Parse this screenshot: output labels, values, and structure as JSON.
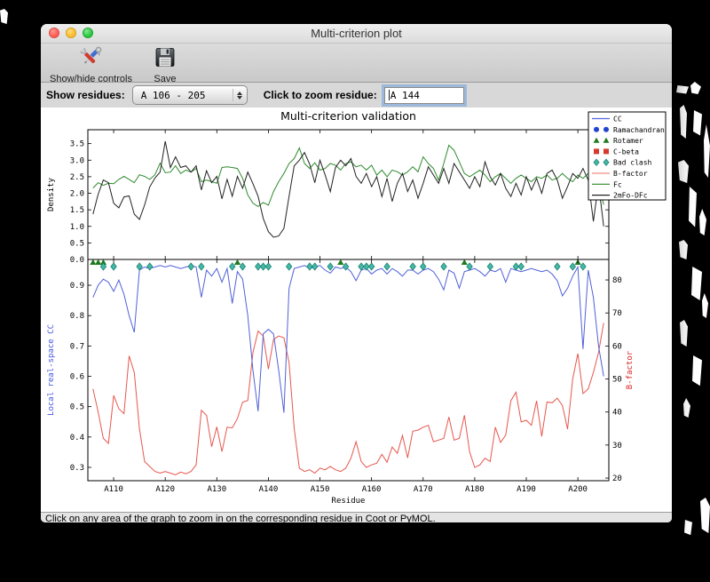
{
  "window": {
    "title": "Multi-criterion plot"
  },
  "toolbar": {
    "buttons": [
      {
        "label": "Show/hide controls",
        "icon": "tools-icon"
      },
      {
        "label": "Save",
        "icon": "floppy-disk-icon"
      }
    ]
  },
  "controls": {
    "show_residues_label": "Show residues:",
    "residue_range_value": "A 106 - 205",
    "zoom_residue_label": "Click to zoom residue:",
    "zoom_residue_value": "A  144"
  },
  "status": {
    "message": "Click on any area of the graph to zoom in on the corresponding residue in Coot or PyMOL."
  },
  "chart_data": {
    "type": "line",
    "title": "Multi-criterion validation",
    "xlabel": "Residue",
    "x_start": 106,
    "xlim": [
      105,
      206
    ],
    "x_tick_values": [
      110,
      120,
      130,
      140,
      150,
      160,
      170,
      180,
      190,
      200
    ],
    "x_tick_labels": [
      "A110",
      "A120",
      "A130",
      "A140",
      "A150",
      "A160",
      "A170",
      "A180",
      "A190",
      "A200"
    ],
    "top_panel": {
      "ylabel": "Density",
      "ylim": [
        0,
        3.92
      ],
      "ytick_values": [
        0.0,
        0.5,
        1.0,
        1.5,
        2.0,
        2.5,
        3.0,
        3.5
      ],
      "ytick_labels": [
        "0.0",
        "0.5",
        "1.0",
        "1.5",
        "2.0",
        "2.5",
        "3.0",
        "3.5"
      ],
      "series": [
        {
          "name": "Fc",
          "color": "#2e8b2e",
          "values": [
            2.16,
            2.32,
            2.24,
            2.3,
            2.29,
            2.42,
            2.51,
            2.42,
            2.32,
            2.56,
            2.51,
            2.42,
            2.56,
            2.91,
            2.62,
            2.64,
            2.83,
            2.6,
            2.7,
            2.64,
            2.75,
            2.35,
            2.4,
            2.35,
            2.3,
            2.78,
            2.8,
            2.78,
            2.75,
            2.45,
            1.95,
            1.7,
            1.6,
            1.72,
            1.64,
            2.05,
            2.35,
            2.6,
            2.9,
            3.05,
            3.37,
            2.9,
            2.75,
            2.92,
            2.7,
            2.75,
            2.9,
            2.85,
            2.7,
            2.9,
            2.95,
            2.8,
            2.85,
            2.7,
            2.85,
            2.55,
            2.7,
            2.5,
            2.7,
            2.65,
            2.55,
            2.65,
            2.8,
            2.65,
            3.1,
            2.9,
            2.75,
            2.4,
            2.9,
            3.45,
            3.3,
            2.95,
            2.6,
            2.5,
            2.6,
            2.7,
            2.55,
            2.35,
            2.5,
            2.6,
            2.45,
            2.3,
            2.45,
            2.55,
            2.45,
            2.35,
            2.5,
            2.45,
            2.55,
            2.4,
            2.45,
            2.6,
            2.45,
            2.35,
            2.55,
            2.45,
            2.6,
            2.45,
            2.35,
            1.65
          ]
        },
        {
          "name": "2mFo-DFc",
          "color": "#222222",
          "values": [
            1.37,
            1.97,
            2.4,
            2.32,
            1.7,
            1.56,
            1.89,
            1.92,
            1.37,
            1.21,
            1.64,
            2.19,
            2.46,
            2.64,
            3.57,
            2.78,
            3.1,
            2.78,
            2.83,
            2.64,
            2.83,
            2.1,
            2.68,
            2.32,
            2.51,
            1.83,
            2.42,
            1.91,
            2.51,
            2.15,
            2.64,
            2.29,
            1.91,
            1.24,
            0.84,
            0.67,
            0.71,
            0.94,
            1.91,
            2.83,
            3.0,
            3.23,
            2.88,
            2.32,
            3.0,
            2.56,
            2.05,
            2.78,
            3.0,
            2.83,
            3.05,
            2.51,
            2.3,
            2.6,
            2.2,
            2.5,
            1.9,
            2.45,
            1.75,
            2.3,
            2.6,
            2.05,
            2.4,
            1.85,
            2.3,
            2.8,
            2.55,
            2.3,
            2.75,
            2.3,
            2.9,
            2.65,
            2.4,
            2.15,
            2.5,
            2.2,
            2.95,
            2.5,
            2.25,
            2.6,
            2.15,
            1.9,
            2.3,
            1.95,
            2.5,
            2.1,
            2.45,
            2.0,
            2.6,
            2.7,
            2.4,
            1.85,
            2.2,
            2.6,
            2.45,
            2.75,
            2.4,
            1.15,
            2.3,
            1.0
          ]
        }
      ]
    },
    "bottom_panel": {
      "ylabel_left": "Local real-space CC",
      "ylabel_left_color": "#4555dd",
      "ylim_left": [
        0.256,
        0.985
      ],
      "ytick_left_values": [
        0.3,
        0.4,
        0.5,
        0.6,
        0.7,
        0.8,
        0.9
      ],
      "ytick_left_labels": [
        "0.3",
        "0.4",
        "0.5",
        "0.6",
        "0.7",
        "0.8",
        "0.9"
      ],
      "ylabel_right": "B-factor",
      "ylabel_right_color": "#dd2222",
      "ylim_right": [
        19.2,
        86.2
      ],
      "ytick_right_values": [
        20,
        30,
        40,
        50,
        60,
        70,
        80
      ],
      "ytick_right_labels": [
        "20",
        "30",
        "40",
        "50",
        "60",
        "70",
        "80"
      ],
      "series": [
        {
          "name": "CC",
          "axis": "left",
          "color": "#5061d8",
          "values": [
            0.86,
            0.9,
            0.92,
            0.91,
            0.88,
            0.917,
            0.87,
            0.8,
            0.745,
            0.95,
            0.96,
            0.955,
            0.96,
            0.965,
            0.96,
            0.965,
            0.96,
            0.955,
            0.96,
            0.965,
            0.96,
            0.86,
            0.95,
            0.93,
            0.955,
            0.91,
            0.955,
            0.84,
            0.945,
            0.92,
            0.8,
            0.62,
            0.485,
            0.74,
            0.755,
            0.74,
            0.62,
            0.48,
            0.89,
            0.955,
            0.96,
            0.965,
            0.955,
            0.96,
            0.965,
            0.95,
            0.94,
            0.96,
            0.955,
            0.96,
            0.945,
            0.915,
            0.95,
            0.955,
            0.937,
            0.95,
            0.955,
            0.937,
            0.955,
            0.945,
            0.93,
            0.95,
            0.95,
            0.937,
            0.95,
            0.955,
            0.945,
            0.92,
            0.885,
            0.95,
            0.94,
            0.89,
            0.945,
            0.95,
            0.955,
            0.945,
            0.93,
            0.95,
            0.945,
            0.955,
            0.91,
            0.955,
            0.95,
            0.945,
            0.95,
            0.955,
            0.95,
            0.945,
            0.95,
            0.937,
            0.915,
            0.865,
            0.89,
            0.93,
            0.96,
            0.69,
            0.95,
            0.86,
            0.7,
            0.6
          ]
        },
        {
          "name": "B-factor",
          "axis": "right",
          "color": "#e6574e",
          "values": [
            47,
            40,
            32,
            30.5,
            45,
            41,
            39.5,
            57,
            52,
            35,
            25,
            23.5,
            22,
            21.5,
            22,
            21.5,
            21,
            21.8,
            21.3,
            22,
            24,
            40.5,
            39,
            29.5,
            35.5,
            28,
            35.4,
            35.2,
            38,
            43,
            43.5,
            58,
            64.5,
            63,
            53,
            62,
            63,
            62.5,
            55,
            35,
            23,
            22,
            22.5,
            21.5,
            23,
            22.5,
            23.5,
            22.5,
            22,
            23,
            26,
            31,
            25,
            23.2,
            24,
            24.5,
            27.2,
            24.8,
            29.4,
            27.5,
            32.9,
            26.1,
            34.2,
            34.5,
            35.4,
            36,
            31,
            31.5,
            32,
            38.5,
            31.5,
            32,
            39,
            28,
            23.2,
            24,
            26,
            25,
            35.4,
            30.8,
            33,
            43.4,
            46,
            37,
            37.5,
            36,
            43.4,
            32.6,
            43,
            42.8,
            44.2,
            42,
            34.8,
            50,
            57.7,
            45.6,
            47,
            52,
            58,
            67
          ]
        }
      ],
      "markers": [
        {
          "name": "Rotamer",
          "shape": "triangle",
          "color": "#1f7a1f",
          "residues": [
            106,
            107,
            108,
            134,
            154,
            178,
            200
          ]
        },
        {
          "name": "Bad clash",
          "shape": "diamond",
          "color": "#45b8a8",
          "edge": "#17806f",
          "residues": [
            108,
            110,
            115,
            117,
            125,
            127,
            133,
            135,
            138,
            139,
            140,
            144,
            148,
            149,
            152,
            155,
            158,
            159,
            160,
            163,
            168,
            170,
            174,
            179,
            183,
            188,
            189,
            196,
            199,
            201
          ]
        }
      ]
    },
    "legend": {
      "position": "upper right",
      "entries": [
        {
          "label": "CC",
          "swatch": "line",
          "color": "#5566dd"
        },
        {
          "label": "Ramachandran",
          "swatch": "circles",
          "color": "#2244cc"
        },
        {
          "label": "Rotamer",
          "swatch": "triangles",
          "color": "#1f7a1f"
        },
        {
          "label": "C-beta",
          "swatch": "squares",
          "color": "#d43b2f"
        },
        {
          "label": "Bad clash",
          "swatch": "diamonds",
          "color": "#45b8a8"
        },
        {
          "label": "B-factor",
          "swatch": "line",
          "color": "#f28b82"
        },
        {
          "label": "Fc",
          "swatch": "line",
          "color": "#2e8b2e"
        },
        {
          "label": "2mFo-DFc",
          "swatch": "line",
          "color": "#222222"
        }
      ]
    }
  }
}
